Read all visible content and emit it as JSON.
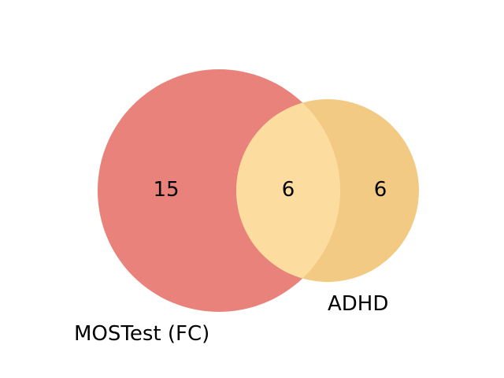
{
  "chart_data": {
    "type": "venn",
    "sets": [
      {
        "name": "MOSTest (FC)",
        "color": "#e8827a",
        "only": 15
      },
      {
        "name": "ADHD",
        "color": "#f2ca84",
        "only": 6
      }
    ],
    "intersection": {
      "value": 6,
      "color": "#fddd9f"
    }
  }
}
